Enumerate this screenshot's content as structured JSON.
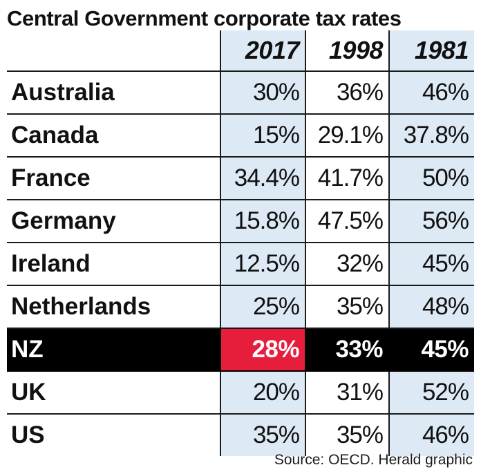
{
  "chart_data": {
    "type": "table",
    "title": "Central Government corporate tax rates",
    "columns": [
      "2017",
      "1998",
      "1981"
    ],
    "rows": [
      {
        "country": "Australia",
        "values": [
          "30%",
          "36%",
          "46%"
        ]
      },
      {
        "country": "Canada",
        "values": [
          "15%",
          "29.1%",
          "37.8%"
        ]
      },
      {
        "country": "France",
        "values": [
          "34.4%",
          "41.7%",
          "50%"
        ]
      },
      {
        "country": "Germany",
        "values": [
          "15.8%",
          "47.5%",
          "56%"
        ]
      },
      {
        "country": "Ireland",
        "values": [
          "12.5%",
          "32%",
          "45%"
        ]
      },
      {
        "country": "Netherlands",
        "values": [
          "25%",
          "35%",
          "48%"
        ]
      },
      {
        "country": "NZ",
        "values": [
          "28%",
          "33%",
          "45%"
        ],
        "highlight": true
      },
      {
        "country": "UK",
        "values": [
          "20%",
          "31%",
          "52%"
        ]
      },
      {
        "country": "US",
        "values": [
          "35%",
          "35%",
          "46%"
        ]
      }
    ],
    "source": "Source: OECD. Herald graphic"
  },
  "colors": {
    "column_shade": "#ddeaf6",
    "highlight_row": "#000000",
    "highlight_cell": "#e61e3c"
  }
}
